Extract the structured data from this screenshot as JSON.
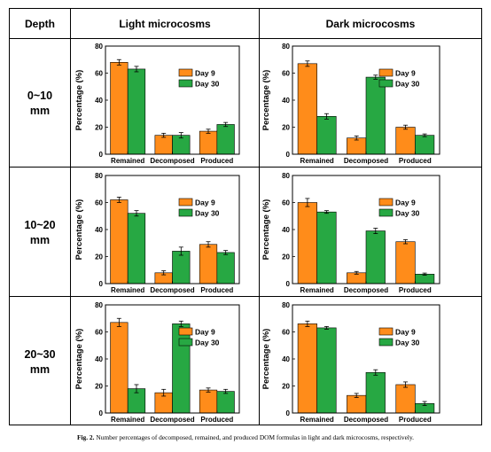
{
  "table": {
    "header_depth": "Depth",
    "header_light": "Light microcosms",
    "header_dark": "Dark microcosms",
    "rows": [
      {
        "depth_line1": "0~10",
        "depth_line2": "mm"
      },
      {
        "depth_line1": "10~20",
        "depth_line2": "mm"
      },
      {
        "depth_line1": "20~30",
        "depth_line2": "mm"
      }
    ]
  },
  "colors": {
    "day9": "#ff8c1a",
    "day30": "#27a843",
    "bar_stroke": "#000000"
  },
  "chart_data": [
    {
      "type": "bar",
      "panel": "light-0-10",
      "categories": [
        "Remained",
        "Decomposed",
        "Produced"
      ],
      "series": [
        {
          "name": "Day 9",
          "values": [
            68,
            14,
            17
          ]
        },
        {
          "name": "Day 30",
          "values": [
            63,
            14,
            22
          ]
        }
      ],
      "errors": [
        [
          2,
          1.5,
          1.5
        ],
        [
          2,
          2,
          1.5
        ]
      ],
      "ylabel": "Percentage (%)",
      "ylim": [
        0,
        80
      ],
      "yticks": [
        0,
        20,
        40,
        60,
        80
      ],
      "legend": "upper-right"
    },
    {
      "type": "bar",
      "panel": "dark-0-10",
      "categories": [
        "Remained",
        "Decomposed",
        "Produced"
      ],
      "series": [
        {
          "name": "Day 9",
          "values": [
            67,
            12,
            20
          ]
        },
        {
          "name": "Day 30",
          "values": [
            28,
            57,
            14
          ]
        }
      ],
      "errors": [
        [
          2,
          1.5,
          1.5
        ],
        [
          2,
          1.5,
          1
        ]
      ],
      "ylabel": "Percentage (%)",
      "ylim": [
        0,
        80
      ],
      "yticks": [
        0,
        20,
        40,
        60,
        80
      ],
      "legend": "upper-right"
    },
    {
      "type": "bar",
      "panel": "light-10-20",
      "categories": [
        "Remained",
        "Decomposed",
        "Produced"
      ],
      "series": [
        {
          "name": "Day 9",
          "values": [
            62,
            8,
            29
          ]
        },
        {
          "name": "Day 30",
          "values": [
            52,
            24,
            23
          ]
        }
      ],
      "errors": [
        [
          2,
          1.5,
          2
        ],
        [
          2,
          3,
          1.5
        ]
      ],
      "ylabel": "Percentage (%)",
      "ylim": [
        0,
        80
      ],
      "yticks": [
        0,
        20,
        40,
        60,
        80
      ],
      "legend": "upper-right"
    },
    {
      "type": "bar",
      "panel": "dark-10-20",
      "categories": [
        "Remained",
        "Decomposed",
        "Produced"
      ],
      "series": [
        {
          "name": "Day 9",
          "values": [
            60,
            8,
            31
          ]
        },
        {
          "name": "Day 30",
          "values": [
            53,
            39,
            7
          ]
        }
      ],
      "errors": [
        [
          3,
          1,
          1.5
        ],
        [
          1,
          2,
          0.8
        ]
      ],
      "ylabel": "Percentage (%)",
      "ylim": [
        0,
        80
      ],
      "yticks": [
        0,
        20,
        40,
        60,
        80
      ],
      "legend": "upper-right"
    },
    {
      "type": "bar",
      "panel": "light-20-30",
      "categories": [
        "Remained",
        "Decomposed",
        "Produced"
      ],
      "series": [
        {
          "name": "Day 9",
          "values": [
            67,
            15,
            17
          ]
        },
        {
          "name": "Day 30",
          "values": [
            18,
            66,
            16
          ]
        }
      ],
      "errors": [
        [
          3,
          2.5,
          1.5
        ],
        [
          3,
          2,
          1.5
        ]
      ],
      "ylabel": "Percentage (%)",
      "ylim": [
        0,
        80
      ],
      "yticks": [
        0,
        20,
        40,
        60,
        80
      ],
      "legend": "upper-right"
    },
    {
      "type": "bar",
      "panel": "dark-20-30",
      "categories": [
        "Remained",
        "Decomposed",
        "Produced"
      ],
      "series": [
        {
          "name": "Day 9",
          "values": [
            66,
            13,
            21
          ]
        },
        {
          "name": "Day 30",
          "values": [
            63,
            30,
            7
          ]
        }
      ],
      "errors": [
        [
          2,
          1.5,
          2
        ],
        [
          1,
          2,
          1.5
        ]
      ],
      "ylabel": "Percentage (%)",
      "ylim": [
        0,
        80
      ],
      "yticks": [
        0,
        20,
        40,
        60,
        80
      ],
      "legend": "upper-right"
    }
  ],
  "caption": {
    "label": "Fig. 2.",
    "text": "Number percentages of decomposed, remained, and produced DOM formulas in light and dark microcosms, respectively."
  }
}
